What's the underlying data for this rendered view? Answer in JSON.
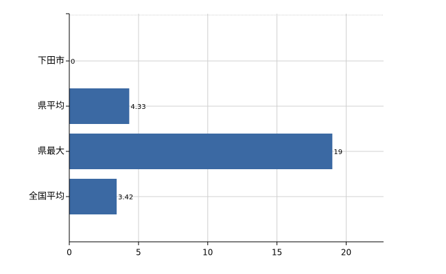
{
  "chart_data": {
    "type": "bar",
    "orientation": "horizontal",
    "categories": [
      "下田市",
      "県平均",
      "県最大",
      "全国平均"
    ],
    "values": [
      0,
      4.33,
      19,
      3.42
    ],
    "color": "#3b69a3",
    "xlim": [
      0,
      22.7
    ],
    "xticks": [
      0,
      5,
      10,
      15,
      20
    ],
    "grid": true
  }
}
